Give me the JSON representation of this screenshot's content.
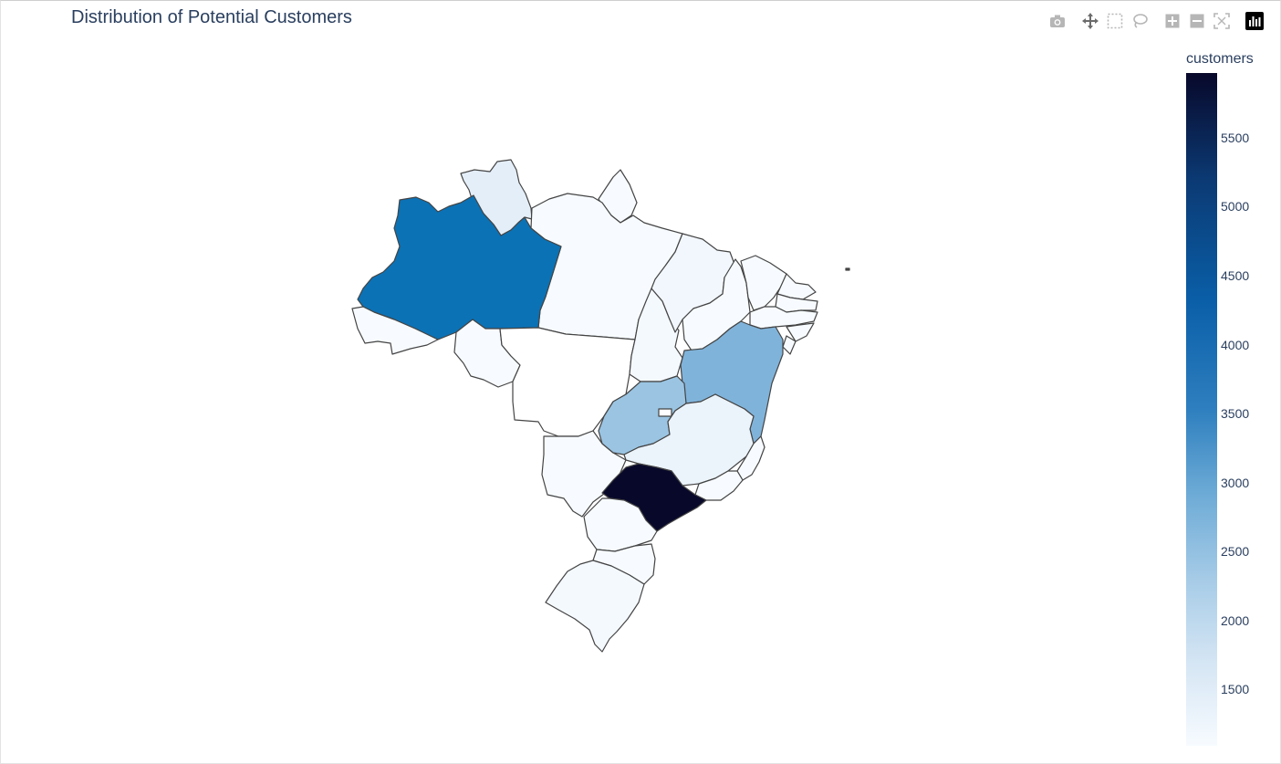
{
  "title": "Distribution of Potential Customers",
  "modebar": {
    "buttons": [
      "camera-icon",
      "pan-icon",
      "box-select-icon",
      "lasso-icon",
      "zoom-in-icon",
      "zoom-out-icon",
      "reset-icon",
      "plotly-logo-icon"
    ]
  },
  "colorbar": {
    "title": "customers",
    "ticks": [
      "5500",
      "5000",
      "4500",
      "4000",
      "3500",
      "3000",
      "2500",
      "2000",
      "1500"
    ],
    "colorscale": "Blues"
  },
  "map": {
    "type": "choropleth",
    "country": "Brazil",
    "border_color": "#444444"
  }
}
